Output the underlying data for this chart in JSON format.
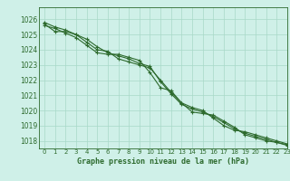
{
  "title": "Graphe pression niveau de la mer (hPa)",
  "background_color": "#cff0e8",
  "grid_color": "#a8d8c8",
  "line_color": "#2d6a2d",
  "xlim": [
    -0.5,
    23
  ],
  "ylim": [
    1017.5,
    1026.8
  ],
  "yticks": [
    1018,
    1019,
    1020,
    1021,
    1022,
    1023,
    1024,
    1025,
    1026
  ],
  "xticks": [
    0,
    1,
    2,
    3,
    4,
    5,
    6,
    7,
    8,
    9,
    10,
    11,
    12,
    13,
    14,
    15,
    16,
    17,
    18,
    19,
    20,
    21,
    22,
    23
  ],
  "series": [
    [
      1025.7,
      1025.2,
      1025.2,
      1025.0,
      1024.7,
      1024.2,
      1023.8,
      1023.6,
      1023.4,
      1023.1,
      1022.9,
      1021.9,
      1021.1,
      1020.4,
      1020.1,
      1019.9,
      1019.6,
      1019.2,
      1018.8,
      1018.5,
      1018.3,
      1018.1,
      1017.9,
      1017.7
    ],
    [
      1025.8,
      1025.5,
      1025.3,
      1025.0,
      1024.5,
      1024.0,
      1023.9,
      1023.4,
      1023.2,
      1023.0,
      1022.8,
      1022.0,
      1021.2,
      1020.5,
      1020.2,
      1020.0,
      1019.5,
      1019.0,
      1018.7,
      1018.6,
      1018.4,
      1018.2,
      1018.0,
      1017.8
    ],
    [
      1025.6,
      1025.4,
      1025.1,
      1024.8,
      1024.3,
      1023.8,
      1023.7,
      1023.7,
      1023.5,
      1023.3,
      1022.5,
      1021.5,
      1021.3,
      1020.5,
      1019.9,
      1019.8,
      1019.7,
      1019.3,
      1018.9,
      1018.4,
      1018.2,
      1018.0,
      1017.9,
      1017.75
    ]
  ]
}
